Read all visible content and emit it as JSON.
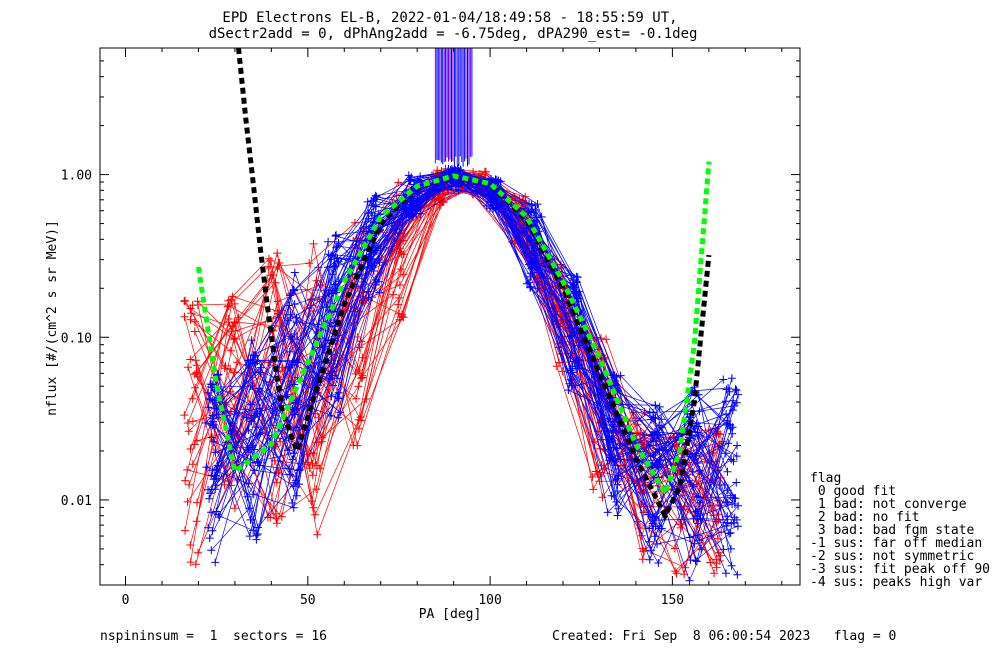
{
  "title_line1": "EPD Electrons EL-B, 2022-01-04/18:49:58 - 18:55:59 UT,",
  "title_line2": "dSectr2add = 0, dPhAng2add = -6.75deg, dPA290_est=  -0.1deg",
  "footer": {
    "left": "nspininsum =  1  sectors = 16",
    "right": "Created: Fri Sep  8 06:00:54 2023   flag = 0"
  },
  "legend": {
    "title": "flag",
    "items": [
      " 0 good fit",
      " 1 bad: not converge",
      " 2 bad: no fit",
      " 3 bad: bad fgm state",
      "-1 sus: far off median",
      "-2 sus: not symmetric",
      "-3 sus: fit peak off 90",
      "-4 sus: peaks high var"
    ]
  },
  "colors": {
    "red": "#ff0000",
    "blue": "#0000ff",
    "black_fit": "#000000",
    "green_fit": "#00ff00",
    "purple": "#8000ff"
  },
  "chart_data": {
    "type": "line",
    "title": "EPD Electrons EL-B, 2022-01-04/18:49:58 - 18:55:59 UT,",
    "xlabel": "PA [deg]",
    "ylabel": "nflux [#/(cm^2 s sr MeV)]",
    "xlim": [
      -7,
      185
    ],
    "ylim": [
      0.003,
      6
    ],
    "yscale": "log",
    "xticks": [
      0,
      50,
      100,
      150
    ],
    "xtick_labels": [
      "0",
      "50",
      "100",
      "150"
    ],
    "yticks": [
      0.01,
      0.1,
      1.0
    ],
    "ytick_labels": [
      "0.01",
      "0.10",
      "1.00"
    ],
    "series": [
      {
        "color": "red",
        "marker": "+",
        "description_from_plot": "many red sweeps",
        "pa": [
          18,
          29,
          41,
          52,
          64,
          75,
          86,
          97,
          108,
          119,
          130,
          141,
          152,
          162
        ],
        "flux_band_low": [
          0.004,
          0.005,
          0.006,
          0.006,
          0.02,
          0.12,
          0.65,
          0.75,
          0.35,
          0.06,
          0.01,
          0.004,
          0.003,
          0.003
        ],
        "flux_band_high": [
          0.17,
          0.2,
          0.35,
          0.4,
          0.55,
          0.9,
          1.1,
          1.05,
          0.75,
          0.3,
          0.1,
          0.04,
          0.03,
          0.03
        ]
      },
      {
        "color": "blue",
        "marker": "+",
        "description_from_plot": "many blue sweeps",
        "pa": [
          24,
          35,
          46,
          57,
          68,
          79,
          90,
          101,
          112,
          123,
          134,
          145,
          156,
          166
        ],
        "flux_band_low": [
          0.004,
          0.005,
          0.007,
          0.03,
          0.15,
          0.55,
          0.8,
          0.6,
          0.2,
          0.04,
          0.008,
          0.004,
          0.003,
          0.003
        ],
        "flux_band_high": [
          0.06,
          0.1,
          0.25,
          0.45,
          0.75,
          1.0,
          1.1,
          0.95,
          0.7,
          0.25,
          0.06,
          0.04,
          0.05,
          0.06
        ]
      },
      {
        "color": "green",
        "style": "dashed",
        "x": [
          20,
          25,
          30,
          40,
          50,
          60,
          70,
          80,
          90,
          100,
          110,
          120,
          130,
          140,
          148,
          152,
          156,
          160
        ],
        "y": [
          0.27,
          0.05,
          0.015,
          0.022,
          0.07,
          0.22,
          0.55,
          0.85,
          0.98,
          0.88,
          0.55,
          0.22,
          0.075,
          0.022,
          0.011,
          0.02,
          0.09,
          1.2
        ]
      },
      {
        "color": "black",
        "style": "dashed",
        "x": [
          31,
          33,
          35,
          37,
          39,
          41,
          43,
          47,
          52,
          60,
          70,
          80,
          90,
          100,
          110,
          120,
          130,
          140,
          148,
          152,
          156,
          160
        ],
        "y": [
          6,
          2.2,
          0.9,
          0.35,
          0.15,
          0.07,
          0.035,
          0.02,
          0.045,
          0.16,
          0.5,
          0.84,
          0.97,
          0.87,
          0.53,
          0.2,
          0.06,
          0.018,
          0.008,
          0.012,
          0.04,
          0.32
        ]
      }
    ]
  }
}
